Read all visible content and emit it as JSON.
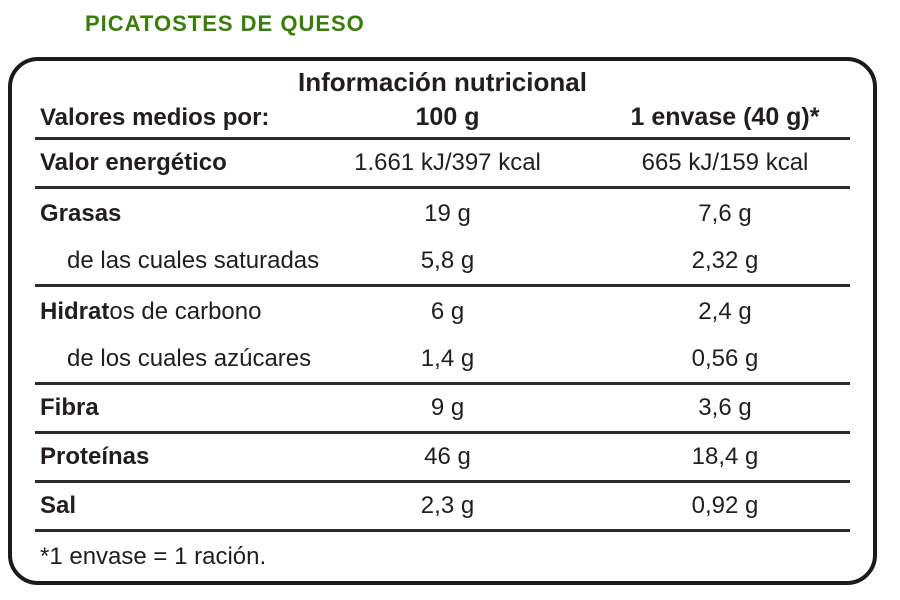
{
  "product_title": {
    "text": "PICATOSTES DE QUESO",
    "color": "#3a7d0a"
  },
  "nutrition_table": {
    "title": "Información nutricional",
    "header": {
      "label": "Valores medios por:",
      "col_100g": "100 g",
      "col_envase": "1 envase (40 g)*"
    },
    "rows": [
      {
        "label_bold": "Valor energético",
        "label_rest": "",
        "per_100g": "1.661 kJ/397 kcal",
        "per_envase": "665 kJ/159 kcal",
        "indent": false,
        "separator_after": true
      },
      {
        "label_bold": "Grasas",
        "label_rest": "",
        "per_100g": "19 g",
        "per_envase": "7,6 g",
        "indent": false,
        "separator_after": false
      },
      {
        "label_bold": "",
        "label_rest": "de las cuales saturadas",
        "per_100g": "5,8 g",
        "per_envase": "2,32 g",
        "indent": true,
        "separator_after": true
      },
      {
        "label_bold": "Hidrat",
        "label_rest": "os de carbono",
        "per_100g": "6 g",
        "per_envase": "2,4 g",
        "indent": false,
        "separator_after": false
      },
      {
        "label_bold": "",
        "label_rest": "de los cuales azúcares",
        "per_100g": "1,4 g",
        "per_envase": "0,56 g",
        "indent": true,
        "separator_after": true
      },
      {
        "label_bold": "Fibra",
        "label_rest": "",
        "per_100g": "9 g",
        "per_envase": "3,6 g",
        "indent": false,
        "separator_after": true
      },
      {
        "label_bold": "Proteínas",
        "label_rest": "",
        "per_100g": "46 g",
        "per_envase": "18,4 g",
        "indent": false,
        "separator_after": true
      },
      {
        "label_bold": "Sal",
        "label_rest": "",
        "per_100g": "2,3 g",
        "per_envase": "0,92 g",
        "indent": false,
        "separator_after": true
      }
    ],
    "footnote": "*1 envase = 1 ración."
  },
  "colors": {
    "text": "#221e1f",
    "border": "#1d1b1a",
    "separator": "#2e2a2b",
    "title_green": "#3a7d0a",
    "background": "#ffffff"
  }
}
